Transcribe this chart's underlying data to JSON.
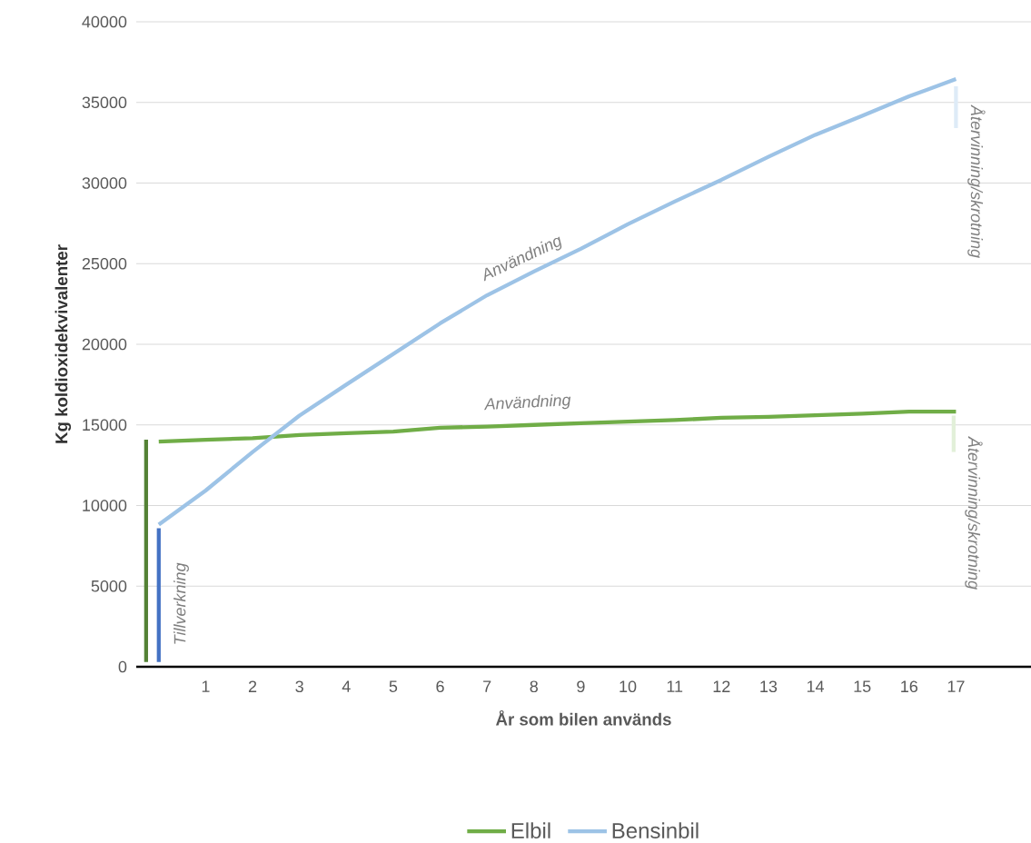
{
  "chart_data": {
    "type": "line",
    "xlabel": "År som bilen används",
    "ylabel": "Kg koldioxidekvivalenter",
    "xlim": [
      -0.48,
      18.6
    ],
    "ylim": [
      0,
      40000
    ],
    "xticks": [
      1,
      2,
      3,
      4,
      5,
      6,
      7,
      8,
      9,
      10,
      11,
      12,
      13,
      14,
      15,
      16,
      17
    ],
    "yticks": [
      0,
      5000,
      10000,
      15000,
      20000,
      25000,
      30000,
      35000,
      40000
    ],
    "grid": "y",
    "legend": "bottom",
    "series": [
      {
        "name": "Elbil",
        "color": "#70ad47",
        "x": [
          0,
          1,
          2,
          3,
          4,
          5,
          6,
          7,
          8,
          9,
          10,
          11,
          12,
          13,
          14,
          15,
          16,
          17
        ],
        "values": [
          13970,
          14080,
          14170,
          14370,
          14480,
          14590,
          14820,
          14900,
          15000,
          15100,
          15200,
          15300,
          15440,
          15500,
          15600,
          15700,
          15830,
          15830
        ]
      },
      {
        "name": "Bensinbil",
        "color": "#9dc3e6",
        "x": [
          0,
          1,
          2,
          3,
          4,
          5,
          6,
          7,
          8,
          9,
          10,
          11,
          12,
          13,
          14,
          15,
          16,
          17
        ],
        "values": [
          8820,
          10930,
          13320,
          15580,
          17500,
          19400,
          21300,
          23040,
          24510,
          25920,
          27440,
          28850,
          30200,
          31630,
          32990,
          34170,
          35380,
          36450
        ]
      },
      {
        "color": "#548235",
        "x": [
          -0.27,
          -0.27
        ],
        "values": [
          300,
          14080
        ]
      },
      {
        "color": "#4472c4",
        "x": [
          0,
          0
        ],
        "values": [
          300,
          8590
        ]
      },
      {
        "color": "#deebf7",
        "x": [
          17,
          17
        ],
        "values": [
          33410,
          36000
        ]
      },
      {
        "color": "#e2f0d9",
        "x": [
          16.95,
          16.95
        ],
        "values": [
          13320,
          15580
        ]
      }
    ],
    "annotations": [
      "Tillverkning",
      "Användning",
      "Användning",
      "Återvinning/skrotning",
      "Återvinning/skrotning"
    ]
  }
}
